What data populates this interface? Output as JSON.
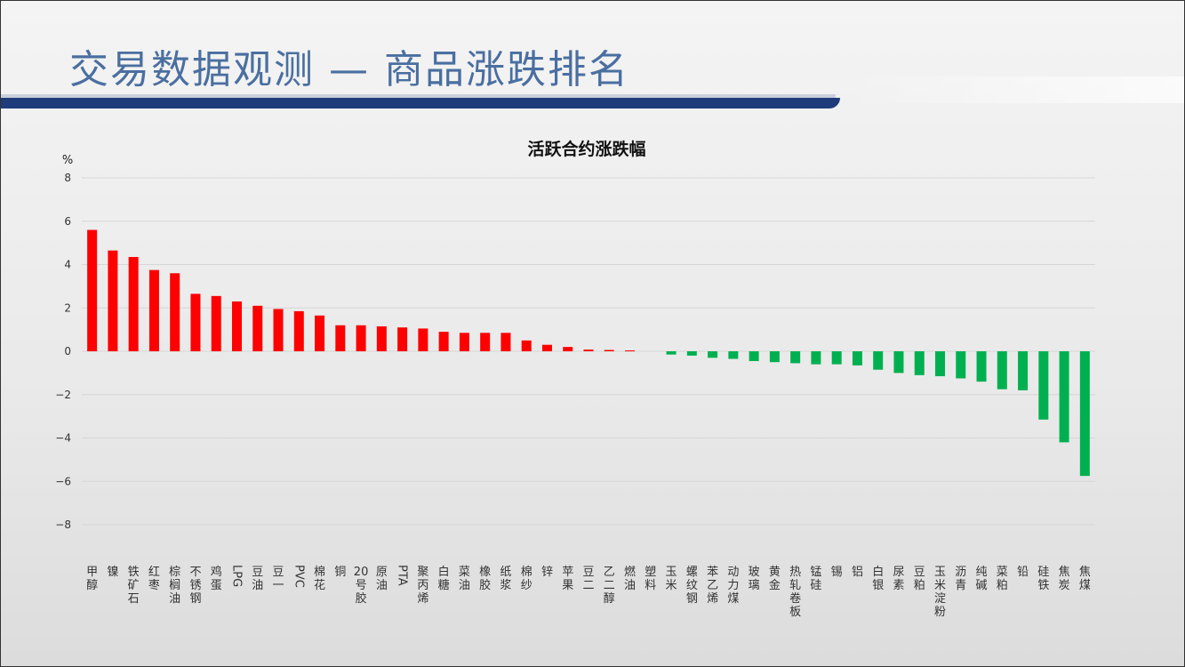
{
  "page": {
    "title": "交易数据观测 — 商品涨跌排名"
  },
  "colors": {
    "up": "#ff0000",
    "down": "#00b050",
    "title": "#4a6fa0",
    "rule": "#1f3c7a"
  },
  "chart_data": {
    "type": "bar",
    "title": "活跃合约涨跌幅",
    "xlabel": "",
    "ylabel": "%",
    "ylim": [
      -8,
      8
    ],
    "yticks": [
      8,
      6,
      4,
      2,
      0,
      -2,
      -4,
      -6,
      -8
    ],
    "grid": true,
    "legend": "none",
    "categories": [
      "甲醇",
      "镍",
      "铁矿石",
      "红枣",
      "棕榈油",
      "不锈钢",
      "鸡蛋",
      "LPG",
      "豆油",
      "豆一",
      "PVC",
      "棉花",
      "铜",
      "20号胶",
      "原油",
      "PTA",
      "聚丙烯",
      "白糖",
      "菜油",
      "橡胶",
      "纸浆",
      "棉纱",
      "锌",
      "苹果",
      "豆二",
      "乙二醇",
      "燃油",
      "塑料",
      "玉米",
      "螺纹钢",
      "苯乙烯",
      "动力煤",
      "玻璃",
      "黄金",
      "热轧卷板",
      "锰硅",
      "锡",
      "铝",
      "白银",
      "尿素",
      "豆粕",
      "玉米淀粉",
      "沥青",
      "纯碱",
      "菜粕",
      "铅",
      "硅铁",
      "焦炭",
      "焦煤"
    ],
    "values": [
      5.6,
      4.65,
      4.35,
      3.75,
      3.6,
      2.65,
      2.55,
      2.3,
      2.1,
      1.95,
      1.85,
      1.65,
      1.2,
      1.2,
      1.15,
      1.1,
      1.05,
      0.9,
      0.85,
      0.85,
      0.85,
      0.5,
      0.3,
      0.2,
      0.08,
      0.06,
      0.04,
      0.0,
      -0.15,
      -0.2,
      -0.3,
      -0.35,
      -0.45,
      -0.5,
      -0.55,
      -0.6,
      -0.6,
      -0.65,
      -0.85,
      -1.0,
      -1.1,
      -1.15,
      -1.25,
      -1.4,
      -1.75,
      -1.8,
      -3.15,
      -4.2,
      -5.75
    ]
  }
}
